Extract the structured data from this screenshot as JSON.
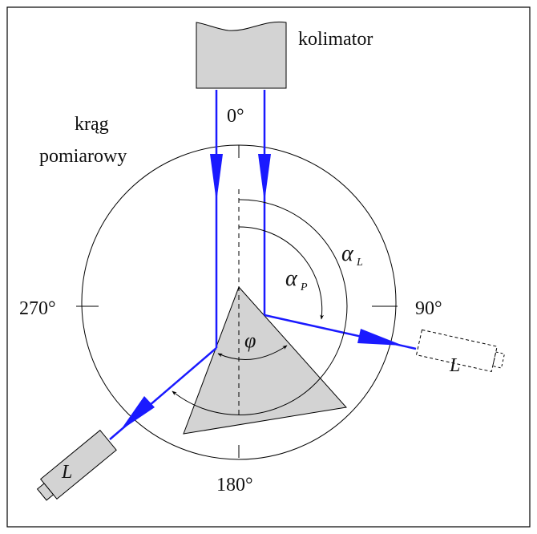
{
  "labels": {
    "collimator": "kolimator",
    "circle_line1": "krąg",
    "circle_line2": "pomiarowy",
    "deg_0": "0°",
    "deg_90": "90°",
    "deg_180": "180°",
    "deg_270": "270°",
    "phi": "φ",
    "alpha": "α",
    "sub_L": "L",
    "sub_P": "P",
    "telescope_right": "L",
    "telescope_left": "L"
  },
  "colors": {
    "beam": "#1a1aff",
    "prism": "#d3d3d3",
    "collimator": "#d3d3d3",
    "telescope": "#d3d3d3",
    "line": "#000000"
  }
}
